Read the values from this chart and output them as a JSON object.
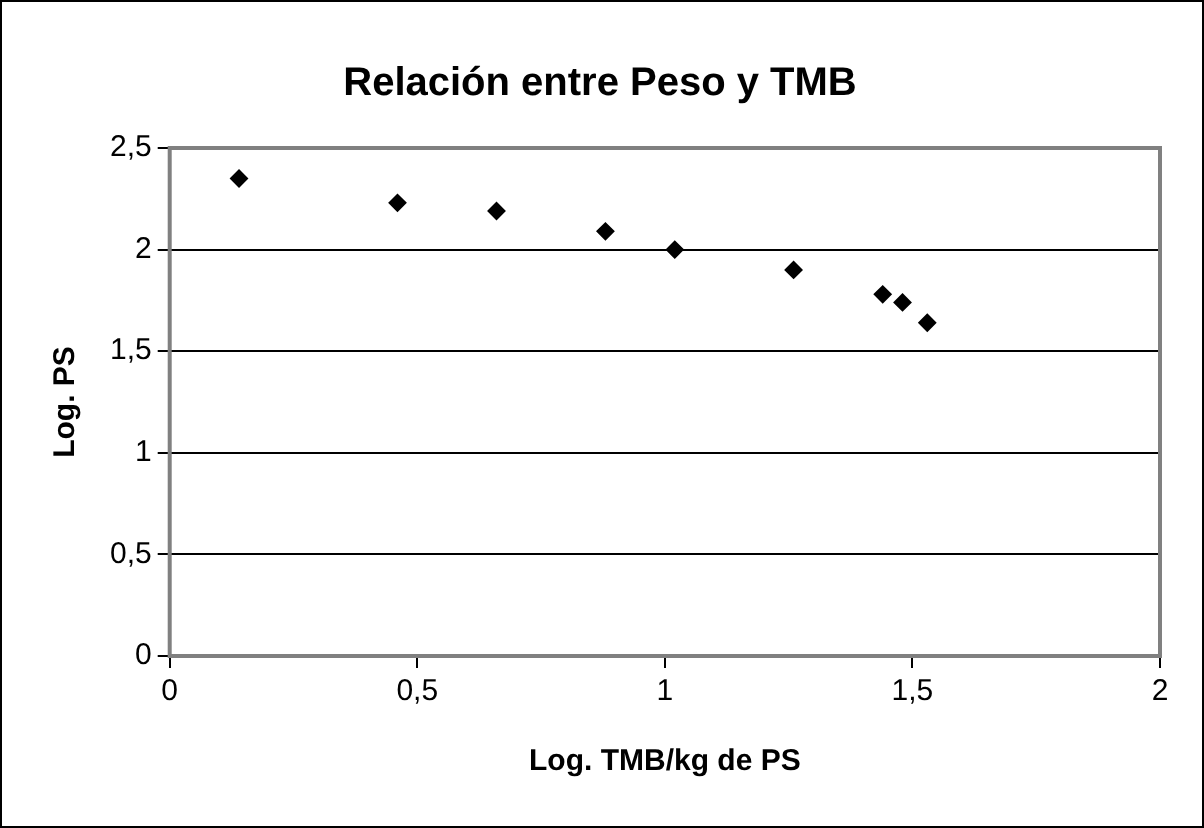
{
  "chart_data": {
    "type": "scatter",
    "title": "Relación entre Peso y TMB",
    "xlabel": "Log. TMB/kg de PS",
    "ylabel": "Log. PS",
    "x": [
      0.14,
      0.46,
      0.66,
      0.88,
      1.02,
      1.26,
      1.44,
      1.48,
      1.53
    ],
    "values": [
      2.35,
      2.23,
      2.19,
      2.09,
      2.0,
      1.9,
      1.78,
      1.74,
      1.64
    ],
    "color": "#000000",
    "marker": "diamond",
    "xlim": [
      0,
      2
    ],
    "xticks": [
      {
        "value": 0,
        "label": "0"
      },
      {
        "value": 0.5,
        "label": "0,5"
      },
      {
        "value": 1,
        "label": "1"
      },
      {
        "value": 1.5,
        "label": "1,5"
      },
      {
        "value": 2,
        "label": "2"
      }
    ],
    "ylim": [
      0,
      2.5
    ],
    "yticks": [
      {
        "value": 0,
        "label": "0"
      },
      {
        "value": 0.5,
        "label": "0,5"
      },
      {
        "value": 1,
        "label": "1"
      },
      {
        "value": 1.5,
        "label": "1,5"
      },
      {
        "value": 2,
        "label": "2"
      },
      {
        "value": 2.5,
        "label": "2,5"
      }
    ],
    "grid": "y",
    "legend": false
  }
}
